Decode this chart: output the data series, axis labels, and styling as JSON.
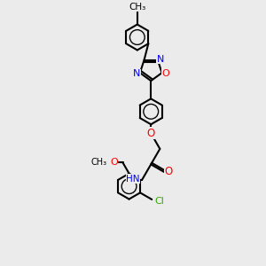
{
  "background_color": "#ebebeb",
  "line_color": "#000000",
  "N_color": "#0000ff",
  "O_color": "#ff0000",
  "Cl_color": "#33aa00",
  "bond_lw": 1.5,
  "font_size": 7.5,
  "figsize": [
    3.0,
    3.0
  ],
  "dpi": 100,
  "xlim": [
    -1.2,
    1.6
  ],
  "ylim": [
    -3.5,
    2.5
  ]
}
